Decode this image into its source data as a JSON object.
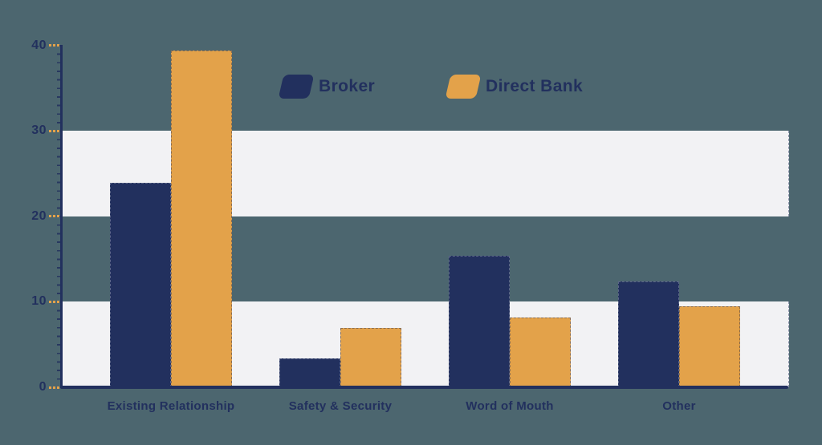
{
  "background_color": "#4c666f",
  "colors": {
    "navy": "#22305e",
    "orange": "#e3a24a",
    "band": "#f2f2f4",
    "axis": "#22305e",
    "tick_dash": "#e3a24a",
    "text": "#22305e"
  },
  "legend": {
    "position": "top-center",
    "items": [
      {
        "label": "Broker",
        "color": "#22305e"
      },
      {
        "label": "Direct Bank",
        "color": "#e3a24a"
      }
    ]
  },
  "chart_data": {
    "type": "bar",
    "title": "",
    "xlabel": "",
    "ylabel": "",
    "categories": [
      "Existing Relationship",
      "Safety & Security",
      "Word of Mouth",
      "Other"
    ],
    "series": [
      {
        "name": "Broker",
        "color": "#22305e",
        "values": [
          23.9,
          3.4,
          15.4,
          12.4
        ]
      },
      {
        "name": "Direct Bank",
        "color": "#e3a24a",
        "values": [
          39.4,
          6.9,
          8.2,
          9.5
        ]
      }
    ],
    "ylim": [
      0,
      40
    ],
    "yticks": [
      0,
      10,
      20,
      30,
      40
    ],
    "stripe_bands": [
      [
        0,
        10
      ],
      [
        20,
        30
      ]
    ],
    "grid": "horizontal-bands",
    "legend_position": "top"
  }
}
